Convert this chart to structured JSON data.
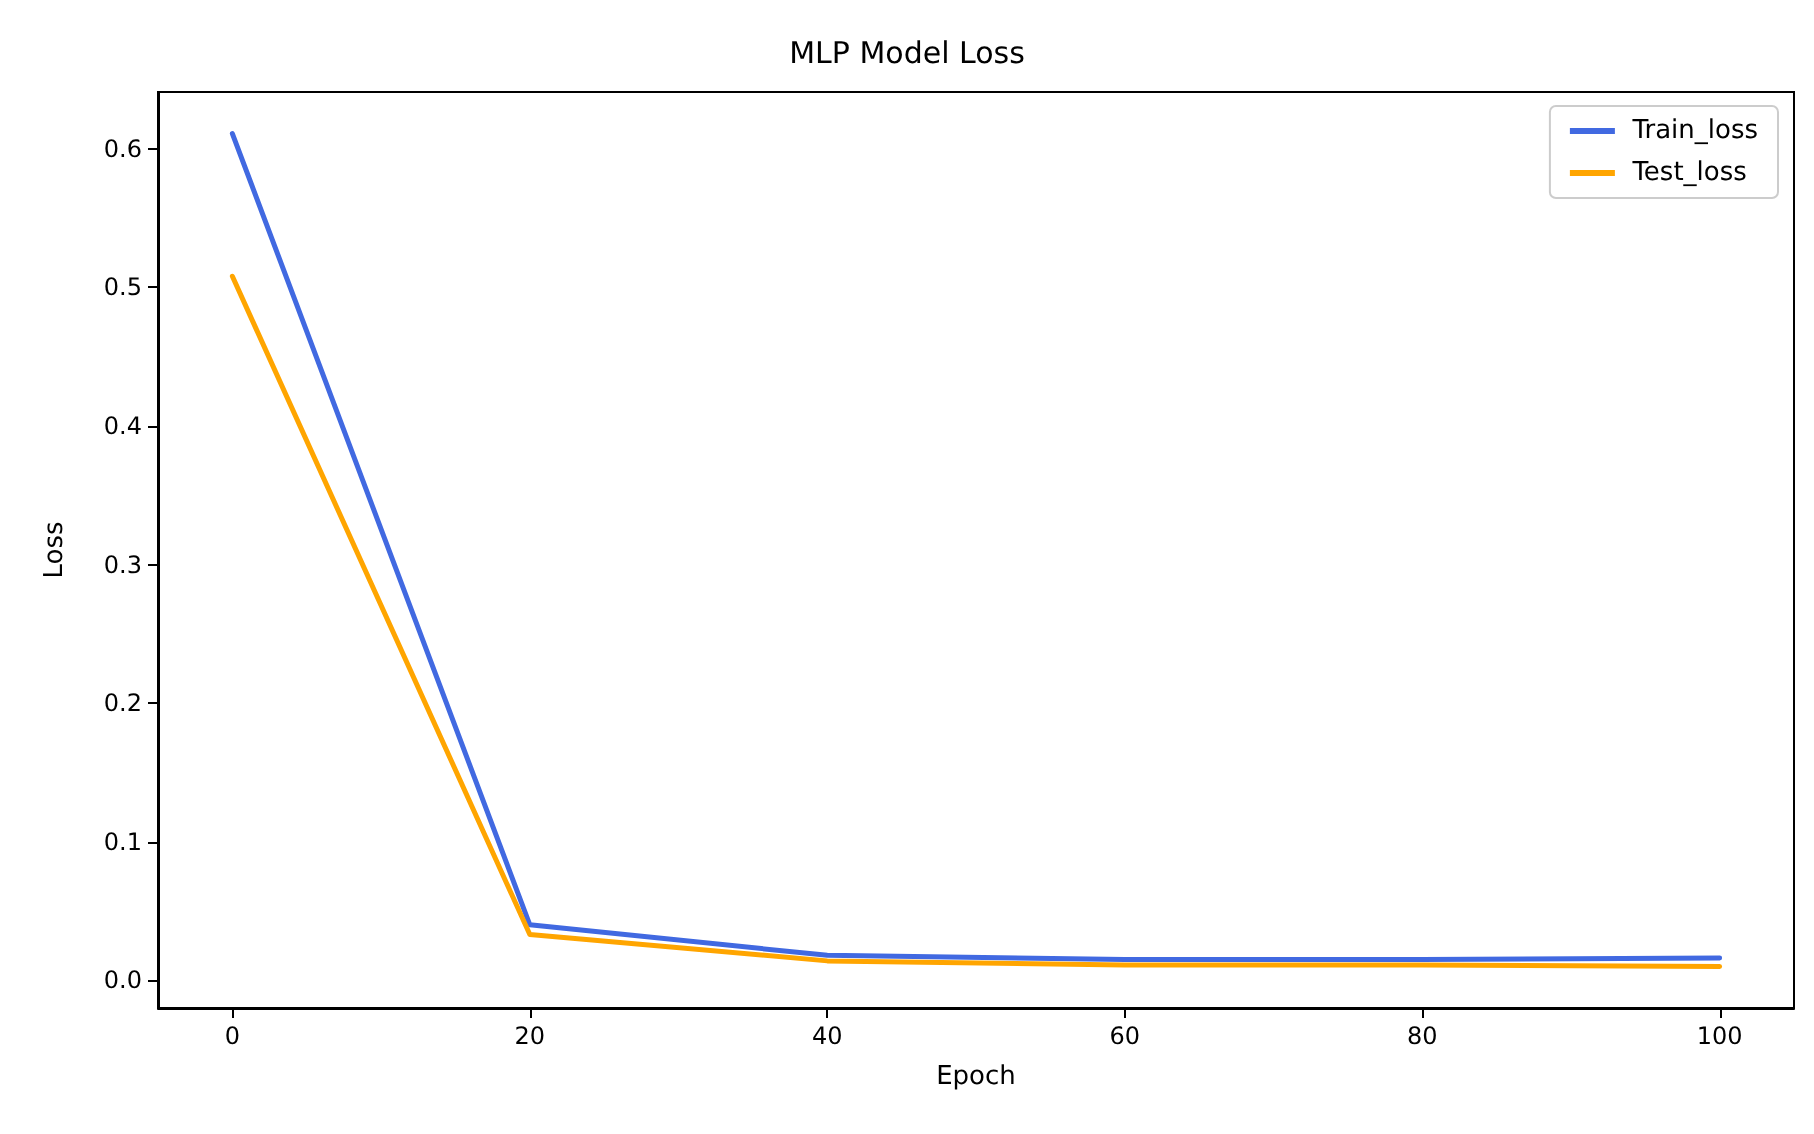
{
  "chart_data": {
    "type": "line",
    "title": "MLP Model Loss",
    "xlabel": "Epoch",
    "ylabel": "Loss",
    "x": [
      0,
      20,
      40,
      60,
      80,
      100
    ],
    "series": [
      {
        "name": "Train_loss",
        "color": "#4169e1",
        "values": [
          0.611,
          0.04,
          0.018,
          0.015,
          0.015,
          0.016
        ]
      },
      {
        "name": "Test_loss",
        "color": "#ffa500",
        "values": [
          0.508,
          0.033,
          0.014,
          0.011,
          0.011,
          0.01
        ]
      }
    ],
    "xlim": [
      -5,
      105
    ],
    "xticks": [
      0,
      20,
      40,
      60,
      80,
      100
    ],
    "ylim": [
      -0.02,
      0.641
    ],
    "yticks": [
      {
        "value": 0,
        "label": "0.0"
      },
      {
        "value": 0.1,
        "label": "0.1"
      },
      {
        "value": 0.2,
        "label": "0.2"
      },
      {
        "value": 0.3,
        "label": "0.3"
      },
      {
        "value": 0.4,
        "label": "0.4"
      },
      {
        "value": 0.5,
        "label": "0.5"
      },
      {
        "value": 0.6,
        "label": "0.6"
      }
    ],
    "grid": false,
    "legend": "top right",
    "marker": "none",
    "line_style": "solid"
  }
}
